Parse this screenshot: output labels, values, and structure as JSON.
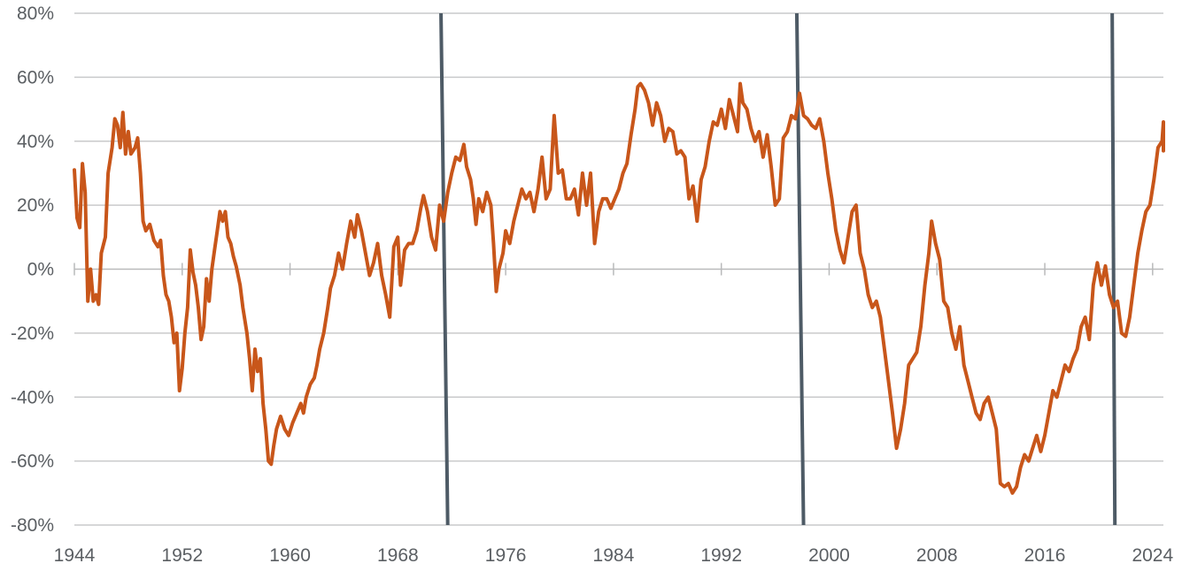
{
  "chart_data": {
    "type": "line",
    "title": "",
    "xlabel": "",
    "ylabel": "",
    "xlim": [
      1944,
      2024.8
    ],
    "ylim": [
      -80,
      80
    ],
    "x_ticks": [
      1944,
      1952,
      1960,
      1968,
      1976,
      1984,
      1992,
      2000,
      2008,
      2016,
      2024
    ],
    "x_tick_labels": [
      "1944",
      "1952",
      "1960",
      "1968",
      "1976",
      "1984",
      "1992",
      "2000",
      "2008",
      "2016",
      "2024"
    ],
    "y_ticks": [
      80,
      60,
      40,
      20,
      0,
      -20,
      -40,
      -60,
      -80
    ],
    "y_tick_labels": [
      "80%",
      "60%",
      "40%",
      "20%",
      "0%",
      "-20%",
      "-40%",
      "-60%",
      "-80%"
    ],
    "grid": true,
    "legend": "none",
    "colors": {
      "series": "#c8561a",
      "markers": "#4e5b66",
      "grid": "#c9cacb",
      "text": "#5b5f63"
    },
    "markers": [
      {
        "x_top": 1971.2,
        "x_bottom": 1971.7
      },
      {
        "x_top": 1997.6,
        "x_bottom": 1998.1
      },
      {
        "x_top": 2021.0,
        "x_bottom": 2021.2
      }
    ],
    "series": [
      {
        "points": [
          [
            1944.0,
            31
          ],
          [
            1944.2,
            16
          ],
          [
            1944.4,
            13
          ],
          [
            1944.6,
            33
          ],
          [
            1944.8,
            24
          ],
          [
            1945.0,
            -10
          ],
          [
            1945.2,
            0
          ],
          [
            1945.4,
            -10
          ],
          [
            1945.6,
            -8
          ],
          [
            1945.8,
            -11
          ],
          [
            1946.0,
            5
          ],
          [
            1946.3,
            10
          ],
          [
            1946.5,
            30
          ],
          [
            1946.8,
            38
          ],
          [
            1947.0,
            47
          ],
          [
            1947.2,
            45
          ],
          [
            1947.4,
            38
          ],
          [
            1947.6,
            49
          ],
          [
            1947.8,
            36
          ],
          [
            1948.0,
            43
          ],
          [
            1948.2,
            36
          ],
          [
            1948.5,
            38
          ],
          [
            1948.7,
            41
          ],
          [
            1948.9,
            30
          ],
          [
            1949.1,
            15
          ],
          [
            1949.3,
            12
          ],
          [
            1949.6,
            14
          ],
          [
            1949.9,
            9
          ],
          [
            1950.2,
            7
          ],
          [
            1950.4,
            9
          ],
          [
            1950.6,
            -2
          ],
          [
            1950.8,
            -8
          ],
          [
            1951.0,
            -10
          ],
          [
            1951.2,
            -15
          ],
          [
            1951.4,
            -23
          ],
          [
            1951.6,
            -20
          ],
          [
            1951.8,
            -38
          ],
          [
            1952.0,
            -31
          ],
          [
            1952.2,
            -20
          ],
          [
            1952.4,
            -12
          ],
          [
            1952.6,
            6
          ],
          [
            1952.8,
            -1
          ],
          [
            1953.0,
            -5
          ],
          [
            1953.2,
            -12
          ],
          [
            1953.4,
            -22
          ],
          [
            1953.6,
            -18
          ],
          [
            1953.8,
            -3
          ],
          [
            1954.0,
            -10
          ],
          [
            1954.2,
            0
          ],
          [
            1954.4,
            6
          ],
          [
            1954.6,
            12
          ],
          [
            1954.8,
            18
          ],
          [
            1955.0,
            15
          ],
          [
            1955.2,
            18
          ],
          [
            1955.4,
            10
          ],
          [
            1955.6,
            8
          ],
          [
            1955.8,
            4
          ],
          [
            1956.0,
            1
          ],
          [
            1956.3,
            -5
          ],
          [
            1956.5,
            -12
          ],
          [
            1956.8,
            -20
          ],
          [
            1957.0,
            -28
          ],
          [
            1957.2,
            -38
          ],
          [
            1957.4,
            -25
          ],
          [
            1957.6,
            -32
          ],
          [
            1957.8,
            -28
          ],
          [
            1958.0,
            -42
          ],
          [
            1958.2,
            -50
          ],
          [
            1958.4,
            -60
          ],
          [
            1958.6,
            -61
          ],
          [
            1958.8,
            -55
          ],
          [
            1959.0,
            -50
          ],
          [
            1959.3,
            -46
          ],
          [
            1959.6,
            -50
          ],
          [
            1959.9,
            -52
          ],
          [
            1960.2,
            -48
          ],
          [
            1960.5,
            -45
          ],
          [
            1960.8,
            -42
          ],
          [
            1961.0,
            -45
          ],
          [
            1961.2,
            -40
          ],
          [
            1961.5,
            -36
          ],
          [
            1961.8,
            -34
          ],
          [
            1962.0,
            -30
          ],
          [
            1962.2,
            -25
          ],
          [
            1962.5,
            -20
          ],
          [
            1962.8,
            -12
          ],
          [
            1963.0,
            -6
          ],
          [
            1963.3,
            -2
          ],
          [
            1963.6,
            5
          ],
          [
            1963.9,
            0
          ],
          [
            1964.2,
            8
          ],
          [
            1964.5,
            15
          ],
          [
            1964.8,
            10
          ],
          [
            1965.0,
            17
          ],
          [
            1965.3,
            12
          ],
          [
            1965.6,
            5
          ],
          [
            1965.9,
            -2
          ],
          [
            1966.2,
            2
          ],
          [
            1966.5,
            8
          ],
          [
            1966.8,
            -2
          ],
          [
            1967.1,
            -8
          ],
          [
            1967.4,
            -15
          ],
          [
            1967.7,
            7
          ],
          [
            1968.0,
            10
          ],
          [
            1968.2,
            -5
          ],
          [
            1968.5,
            6
          ],
          [
            1968.8,
            8
          ],
          [
            1969.1,
            8
          ],
          [
            1969.4,
            12
          ],
          [
            1969.7,
            19
          ],
          [
            1969.9,
            23
          ],
          [
            1970.2,
            18
          ],
          [
            1970.5,
            10
          ],
          [
            1970.8,
            6
          ],
          [
            1971.1,
            20
          ],
          [
            1971.4,
            15
          ],
          [
            1971.7,
            24
          ],
          [
            1972.0,
            30
          ],
          [
            1972.3,
            35
          ],
          [
            1972.6,
            34
          ],
          [
            1972.9,
            39
          ],
          [
            1973.1,
            32
          ],
          [
            1973.4,
            28
          ],
          [
            1973.6,
            22
          ],
          [
            1973.8,
            14
          ],
          [
            1974.0,
            22
          ],
          [
            1974.3,
            18
          ],
          [
            1974.6,
            24
          ],
          [
            1974.9,
            20
          ],
          [
            1975.1,
            8
          ],
          [
            1975.3,
            -7
          ],
          [
            1975.5,
            0
          ],
          [
            1975.8,
            5
          ],
          [
            1976.0,
            12
          ],
          [
            1976.3,
            8
          ],
          [
            1976.6,
            15
          ],
          [
            1976.9,
            20
          ],
          [
            1977.2,
            25
          ],
          [
            1977.5,
            22
          ],
          [
            1977.8,
            24
          ],
          [
            1978.1,
            18
          ],
          [
            1978.4,
            25
          ],
          [
            1978.7,
            35
          ],
          [
            1979.0,
            22
          ],
          [
            1979.3,
            25
          ],
          [
            1979.6,
            48
          ],
          [
            1979.9,
            30
          ],
          [
            1980.2,
            31
          ],
          [
            1980.5,
            22
          ],
          [
            1980.8,
            22
          ],
          [
            1981.1,
            25
          ],
          [
            1981.4,
            17
          ],
          [
            1981.7,
            30
          ],
          [
            1982.0,
            20
          ],
          [
            1982.3,
            30
          ],
          [
            1982.6,
            8
          ],
          [
            1982.9,
            18
          ],
          [
            1983.2,
            22
          ],
          [
            1983.5,
            22
          ],
          [
            1983.8,
            19
          ],
          [
            1984.1,
            22
          ],
          [
            1984.4,
            25
          ],
          [
            1984.7,
            30
          ],
          [
            1985.0,
            33
          ],
          [
            1985.3,
            42
          ],
          [
            1985.6,
            50
          ],
          [
            1985.8,
            57
          ],
          [
            1986.0,
            58
          ],
          [
            1986.3,
            56
          ],
          [
            1986.6,
            52
          ],
          [
            1986.9,
            45
          ],
          [
            1987.2,
            52
          ],
          [
            1987.5,
            48
          ],
          [
            1987.8,
            40
          ],
          [
            1988.1,
            44
          ],
          [
            1988.4,
            43
          ],
          [
            1988.7,
            36
          ],
          [
            1989.0,
            37
          ],
          [
            1989.3,
            35
          ],
          [
            1989.6,
            22
          ],
          [
            1989.9,
            26
          ],
          [
            1990.2,
            15
          ],
          [
            1990.5,
            28
          ],
          [
            1990.8,
            32
          ],
          [
            1991.1,
            40
          ],
          [
            1991.4,
            46
          ],
          [
            1991.7,
            45
          ],
          [
            1992.0,
            50
          ],
          [
            1992.3,
            44
          ],
          [
            1992.6,
            53
          ],
          [
            1992.9,
            48
          ],
          [
            1993.2,
            43
          ],
          [
            1993.4,
            58
          ],
          [
            1993.6,
            52
          ],
          [
            1993.9,
            50
          ],
          [
            1994.2,
            44
          ],
          [
            1994.5,
            40
          ],
          [
            1994.8,
            43
          ],
          [
            1995.1,
            35
          ],
          [
            1995.4,
            42
          ],
          [
            1995.7,
            32
          ],
          [
            1996.0,
            20
          ],
          [
            1996.3,
            22
          ],
          [
            1996.6,
            41
          ],
          [
            1996.9,
            43
          ],
          [
            1997.2,
            48
          ],
          [
            1997.5,
            47
          ],
          [
            1997.8,
            55
          ],
          [
            1998.1,
            48
          ],
          [
            1998.4,
            47
          ],
          [
            1998.7,
            45
          ],
          [
            1999.0,
            44
          ],
          [
            1999.3,
            47
          ],
          [
            1999.6,
            40
          ],
          [
            1999.9,
            30
          ],
          [
            2000.2,
            22
          ],
          [
            2000.5,
            12
          ],
          [
            2000.8,
            6
          ],
          [
            2001.1,
            2
          ],
          [
            2001.4,
            10
          ],
          [
            2001.7,
            18
          ],
          [
            2002.0,
            20
          ],
          [
            2002.3,
            5
          ],
          [
            2002.6,
            0
          ],
          [
            2002.9,
            -8
          ],
          [
            2003.2,
            -12
          ],
          [
            2003.5,
            -10
          ],
          [
            2003.8,
            -15
          ],
          [
            2004.1,
            -25
          ],
          [
            2004.4,
            -35
          ],
          [
            2004.7,
            -45
          ],
          [
            2005.0,
            -56
          ],
          [
            2005.3,
            -50
          ],
          [
            2005.6,
            -42
          ],
          [
            2005.9,
            -30
          ],
          [
            2006.2,
            -28
          ],
          [
            2006.5,
            -26
          ],
          [
            2006.8,
            -18
          ],
          [
            2007.1,
            -5
          ],
          [
            2007.4,
            5
          ],
          [
            2007.6,
            15
          ],
          [
            2007.9,
            8
          ],
          [
            2008.2,
            3
          ],
          [
            2008.5,
            -10
          ],
          [
            2008.8,
            -12
          ],
          [
            2009.1,
            -20
          ],
          [
            2009.4,
            -25
          ],
          [
            2009.7,
            -18
          ],
          [
            2010.0,
            -30
          ],
          [
            2010.3,
            -35
          ],
          [
            2010.6,
            -40
          ],
          [
            2010.9,
            -45
          ],
          [
            2011.2,
            -47
          ],
          [
            2011.5,
            -42
          ],
          [
            2011.8,
            -40
          ],
          [
            2012.1,
            -45
          ],
          [
            2012.4,
            -50
          ],
          [
            2012.7,
            -67
          ],
          [
            2013.0,
            -68
          ],
          [
            2013.3,
            -67
          ],
          [
            2013.6,
            -70
          ],
          [
            2013.9,
            -68
          ],
          [
            2014.2,
            -62
          ],
          [
            2014.5,
            -58
          ],
          [
            2014.8,
            -60
          ],
          [
            2015.1,
            -56
          ],
          [
            2015.4,
            -52
          ],
          [
            2015.7,
            -57
          ],
          [
            2016.0,
            -52
          ],
          [
            2016.3,
            -45
          ],
          [
            2016.6,
            -38
          ],
          [
            2016.9,
            -40
          ],
          [
            2017.2,
            -35
          ],
          [
            2017.5,
            -30
          ],
          [
            2017.8,
            -32
          ],
          [
            2018.1,
            -28
          ],
          [
            2018.4,
            -25
          ],
          [
            2018.7,
            -18
          ],
          [
            2019.0,
            -15
          ],
          [
            2019.3,
            -22
          ],
          [
            2019.6,
            -5
          ],
          [
            2019.9,
            2
          ],
          [
            2020.2,
            -5
          ],
          [
            2020.5,
            1
          ],
          [
            2020.8,
            -8
          ],
          [
            2021.1,
            -12
          ],
          [
            2021.4,
            -10
          ],
          [
            2021.7,
            -20
          ],
          [
            2022.0,
            -21
          ],
          [
            2022.3,
            -15
          ],
          [
            2022.6,
            -5
          ],
          [
            2022.9,
            5
          ],
          [
            2023.2,
            12
          ],
          [
            2023.5,
            18
          ],
          [
            2023.8,
            20
          ],
          [
            2024.1,
            28
          ],
          [
            2024.4,
            38
          ],
          [
            2024.7,
            40
          ],
          [
            2025.0,
            46
          ],
          [
            2025.3,
            42
          ],
          [
            2025.6,
            37
          ],
          [
            2025.9,
            38
          ]
        ]
      }
    ]
  }
}
